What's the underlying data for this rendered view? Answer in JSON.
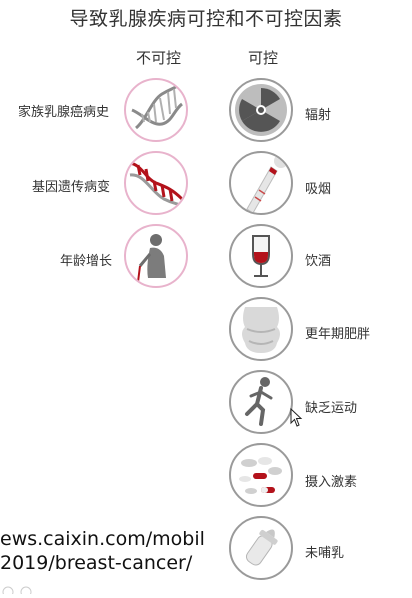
{
  "title": "导致乳腺疾病可控和不可控因素",
  "columns": {
    "uncontrollable": "不可控",
    "controllable": "可控"
  },
  "uncontrollable": [
    {
      "label": "家族乳腺癌病史",
      "icon": "dna-helix-icon"
    },
    {
      "label": "基因遗传病变",
      "icon": "mutated-dna-icon"
    },
    {
      "label": "年龄增长",
      "icon": "elderly-person-icon"
    }
  ],
  "controllable": [
    {
      "label": "辐射",
      "icon": "radiation-icon"
    },
    {
      "label": "吸烟",
      "icon": "cigarette-icon"
    },
    {
      "label": "饮酒",
      "icon": "wine-glass-icon"
    },
    {
      "label": "更年期肥胖",
      "icon": "obese-torso-icon"
    },
    {
      "label": "缺乏运动",
      "icon": "runner-icon"
    },
    {
      "label": "摄入激素",
      "icon": "pills-icon"
    },
    {
      "label": "未哺乳",
      "icon": "baby-bottle-icon"
    }
  ],
  "overlay_url": {
    "line1": "ews.caixin.com/mobil",
    "line2": "2019/breast-cancer/"
  },
  "colors": {
    "accent_red": "#b3121b",
    "pink_border": "#e8b3cc",
    "gray_border": "#9a9a9a"
  }
}
